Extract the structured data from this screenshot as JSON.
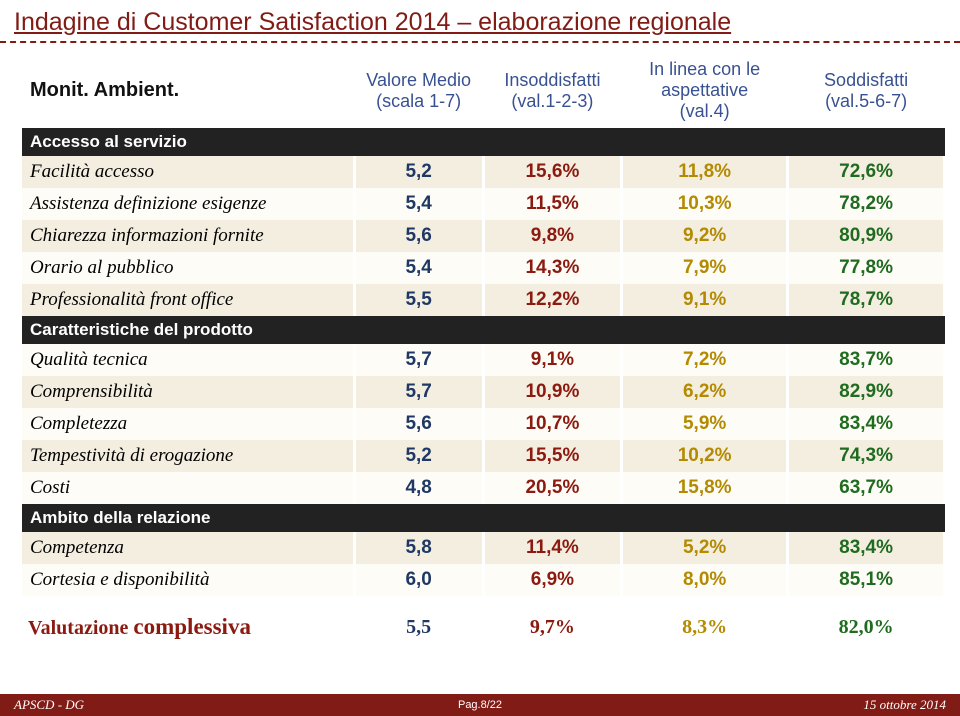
{
  "title": "Indagine di Customer Satisfaction 2014 – elaborazione regionale",
  "cornerLabel": "Monit. Ambient.",
  "columns": [
    {
      "label": "Valore Medio",
      "sub": "(scala 1-7)"
    },
    {
      "label": "Insoddisfatti",
      "sub": "(val.1-2-3)"
    },
    {
      "label": "In linea con le aspettative",
      "sub": "(val.4)"
    },
    {
      "label": "Soddisfatti",
      "sub": "(val.5-6-7)"
    }
  ],
  "colWidths": [
    "36%",
    "14%",
    "15%",
    "18%",
    "17%"
  ],
  "valueColors": {
    "c1": "#1f3864",
    "c2": "#8b1a10",
    "c3": "#b38a00",
    "c4": "#1f6b1f"
  },
  "rowColors": {
    "even": "#f3eee0",
    "odd": "#fdfcf6",
    "section": "#222222"
  },
  "sections": [
    {
      "name": "Accesso al servizio",
      "rows": [
        {
          "label": "Facilità accesso",
          "v": [
            "5,2",
            "15,6%",
            "11,8%",
            "72,6%"
          ]
        },
        {
          "label": "Assistenza definizione esigenze",
          "v": [
            "5,4",
            "11,5%",
            "10,3%",
            "78,2%"
          ]
        },
        {
          "label": "Chiarezza informazioni fornite",
          "v": [
            "5,6",
            "9,8%",
            "9,2%",
            "80,9%"
          ]
        },
        {
          "label": "Orario al pubblico",
          "v": [
            "5,4",
            "14,3%",
            "7,9%",
            "77,8%"
          ]
        },
        {
          "label": "Professionalità front office",
          "v": [
            "5,5",
            "12,2%",
            "9,1%",
            "78,7%"
          ]
        }
      ]
    },
    {
      "name": "Caratteristiche del prodotto",
      "rows": [
        {
          "label": "Qualità tecnica",
          "v": [
            "5,7",
            "9,1%",
            "7,2%",
            "83,7%"
          ]
        },
        {
          "label": "Comprensibilità",
          "v": [
            "5,7",
            "10,9%",
            "6,2%",
            "82,9%"
          ]
        },
        {
          "label": "Completezza",
          "v": [
            "5,6",
            "10,7%",
            "5,9%",
            "83,4%"
          ]
        },
        {
          "label": "Tempestività di erogazione",
          "v": [
            "5,2",
            "15,5%",
            "10,2%",
            "74,3%"
          ]
        },
        {
          "label": "Costi",
          "v": [
            "4,8",
            "20,5%",
            "15,8%",
            "63,7%"
          ]
        }
      ]
    },
    {
      "name": "Ambito della relazione",
      "rows": [
        {
          "label": "Competenza",
          "v": [
            "5,8",
            "11,4%",
            "5,2%",
            "83,4%"
          ]
        },
        {
          "label": "Cortesia e disponibilità",
          "v": [
            "6,0",
            "6,9%",
            "8,0%",
            "85,1%"
          ]
        }
      ]
    }
  ],
  "total": {
    "labelPrefix": "Valutazione ",
    "labelBig": "complessiva",
    "v": [
      "5,5",
      "9,7%",
      "8,3%",
      "82,0%"
    ]
  },
  "footer": {
    "left": "APSCD - DG",
    "center": "Pag.8/22",
    "right": "15 ottobre 2014"
  }
}
